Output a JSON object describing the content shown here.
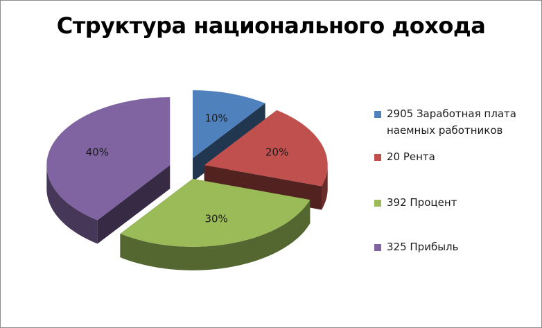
{
  "chart_data": {
    "type": "pie",
    "title": "Структура национального дохода",
    "slices": [
      {
        "label": "2905 Заработная плата наемных работников",
        "percent_label": "10%",
        "value": 10,
        "color": "#4f81bd"
      },
      {
        "label": "20 Рента",
        "percent_label": "20%",
        "value": 20,
        "color": "#c0504d"
      },
      {
        "label": "392 Процент",
        "percent_label": "30%",
        "value": 30,
        "color": "#9bbb59"
      },
      {
        "label": "325 Прибыль",
        "percent_label": "40%",
        "value": 40,
        "color": "#8064a2"
      }
    ],
    "legend_position": "right",
    "exploded": true,
    "three_d": true
  }
}
